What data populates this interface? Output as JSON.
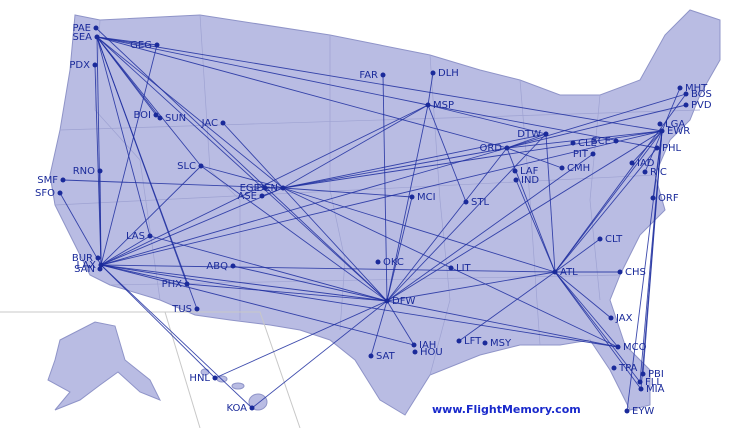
{
  "airports": [
    "PAE",
    "SEA",
    "GEG",
    "PDX",
    "FAR",
    "DLH",
    "MSP",
    "BOI",
    "SUN",
    "JAC",
    "MHT",
    "BOS",
    "PVD",
    "RNO",
    "SLC",
    "ORD",
    "DTW",
    "CLE",
    "SCE",
    "LGA",
    "EWR",
    "PHL",
    "PIT",
    "IAD",
    "RIC",
    "LAF",
    "IND",
    "CMH",
    "SMF",
    "SFO",
    "EGE",
    "DEN",
    "ASE",
    "MCI",
    "STL",
    "ORF",
    "LAS",
    "CLT",
    "ABQ",
    "OKC",
    "LIT",
    "ATL",
    "CHS",
    "BUR",
    "LAX",
    "SAN",
    "PHX",
    "DFW",
    "TUS",
    "JAX",
    "LFT",
    "MSY",
    "IAH",
    "HOU",
    "SAT",
    "MCO",
    "TPA",
    "PBI",
    "FLL",
    "MIA",
    "HNL",
    "KOA",
    "EYW"
  ],
  "footer": "www.FlightMemory.com"
}
